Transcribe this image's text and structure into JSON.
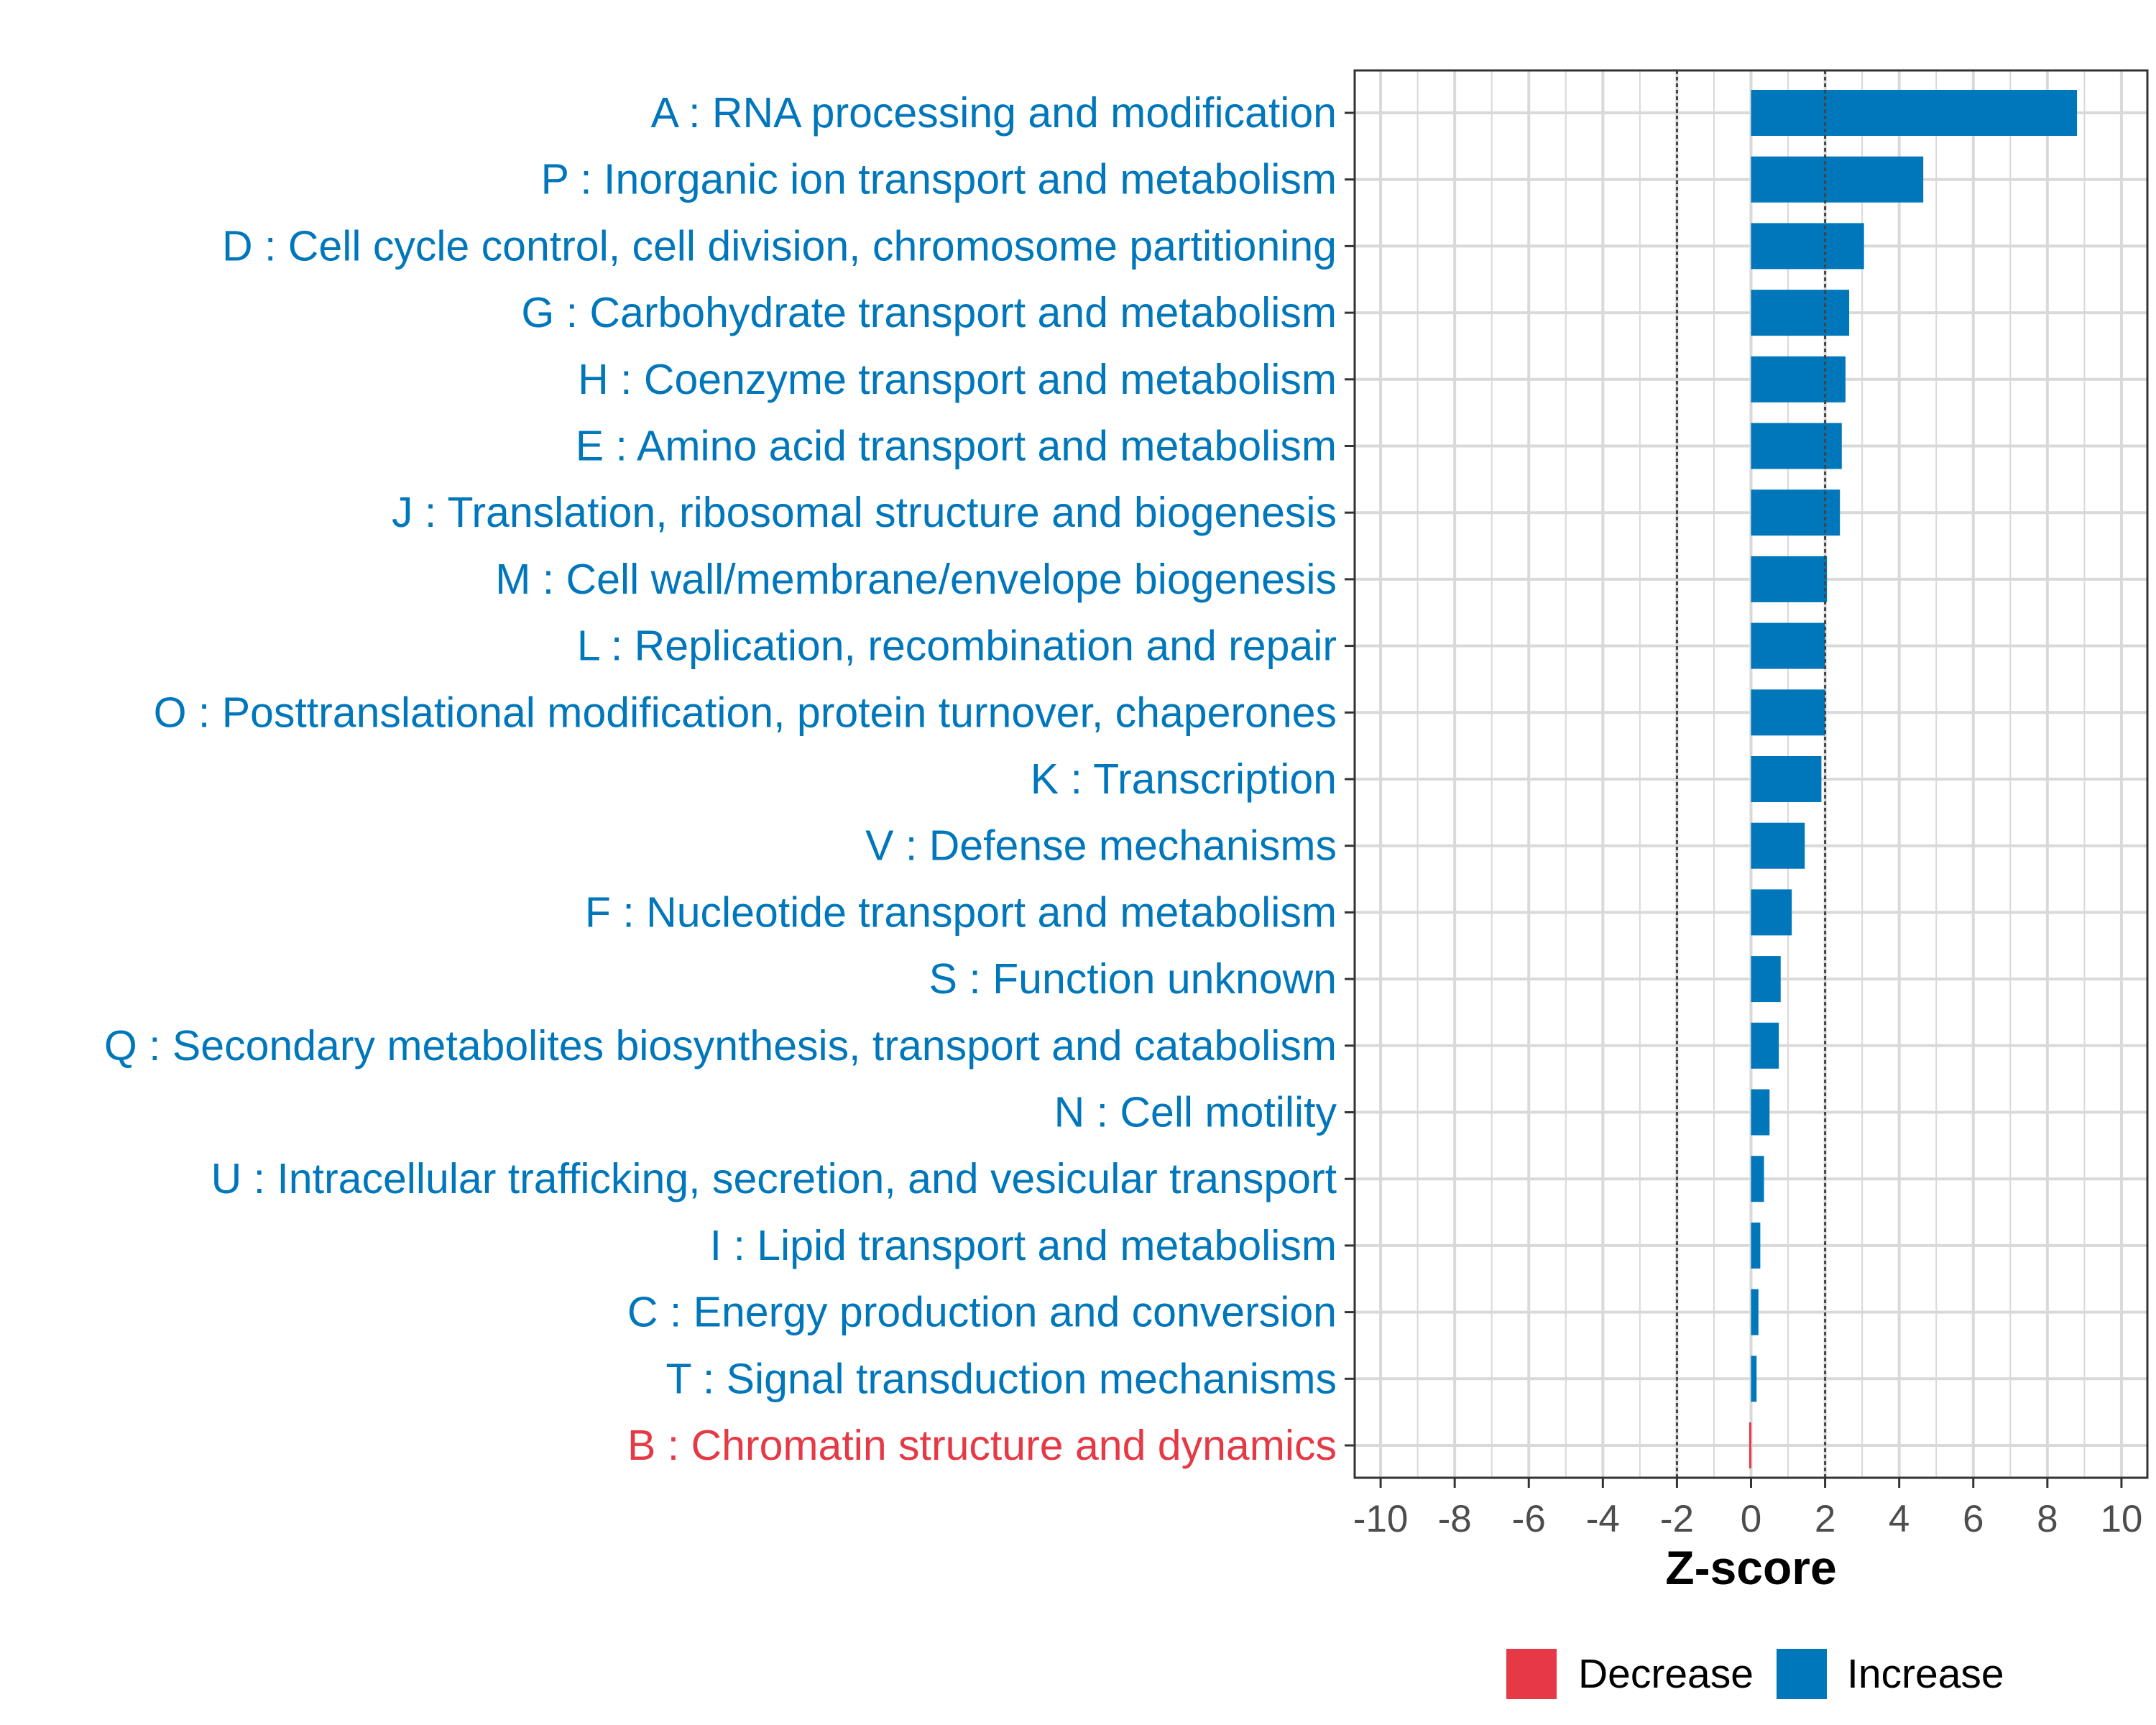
{
  "colors": {
    "increase": "#0077BB",
    "decrease": "#E63946",
    "grid": "#D9D9D9",
    "threshold": "#444444",
    "axis": "#333333",
    "tick_text": "#4D4D4D"
  },
  "chart_data": {
    "type": "bar",
    "orientation": "horizontal",
    "xlabel": "Z-score",
    "xlim": [
      -10.7,
      10.7
    ],
    "xticks": [
      -10,
      -8,
      -6,
      -4,
      -2,
      0,
      2,
      4,
      6,
      8,
      10
    ],
    "xtick_labels": [
      "-10",
      "-8",
      "-6",
      "-4",
      "-2",
      "0",
      "2",
      "4",
      "6",
      "8",
      "10"
    ],
    "threshold_lines": [
      -2,
      2
    ],
    "grid": true,
    "legend_position": "bottom",
    "legend": [
      {
        "label": "Decrease",
        "color_key": "decrease"
      },
      {
        "label": "Increase",
        "color_key": "increase"
      }
    ],
    "categories": [
      "A : RNA processing and modification",
      "P : Inorganic ion transport and metabolism",
      "D : Cell cycle control, cell division, chromosome partitioning",
      "G : Carbohydrate transport and metabolism",
      "H : Coenzyme transport and metabolism",
      "E : Amino acid transport and metabolism",
      "J : Translation, ribosomal structure and biogenesis",
      "M : Cell wall/membrane/envelope biogenesis",
      "L : Replication, recombination and repair",
      "O : Posttranslational modification, protein turnover, chaperones",
      "K : Transcription",
      "V : Defense mechanisms",
      "F : Nucleotide transport and metabolism",
      "S : Function unknown",
      "Q : Secondary metabolites biosynthesis, transport and catabolism",
      "N : Cell motility",
      "U : Intracellular trafficking, secretion, and vesicular transport",
      "I : Lipid transport and metabolism",
      "C : Energy production and conversion",
      "T : Signal transduction mechanisms",
      "B : Chromatin structure and dynamics"
    ],
    "values": [
      8.8,
      4.65,
      3.05,
      2.65,
      2.55,
      2.45,
      2.4,
      2.05,
      2.0,
      2.0,
      1.9,
      1.45,
      1.1,
      0.8,
      0.75,
      0.5,
      0.35,
      0.25,
      0.2,
      0.15,
      -0.05
    ],
    "directions": [
      "increase",
      "increase",
      "increase",
      "increase",
      "increase",
      "increase",
      "increase",
      "increase",
      "increase",
      "increase",
      "increase",
      "increase",
      "increase",
      "increase",
      "increase",
      "increase",
      "increase",
      "increase",
      "increase",
      "increase",
      "decrease"
    ]
  }
}
